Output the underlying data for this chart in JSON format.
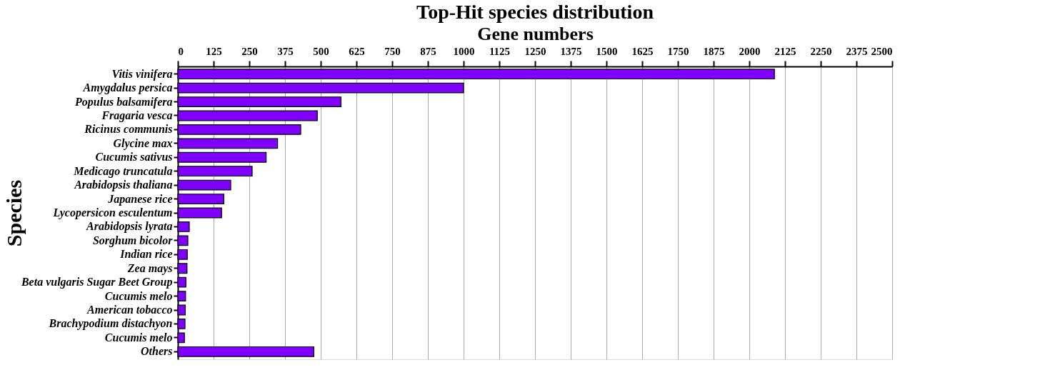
{
  "chart_data": {
    "type": "bar",
    "orientation": "horizontal",
    "title": "Top-Hit species distribution",
    "xlabel": "Gene numbers",
    "ylabel": "Species",
    "categories": [
      "Vitis vinifera",
      "Amygdalus persica",
      "Populus balsamifera",
      "Fragaria vesca",
      "Ricinus communis",
      "Glycine max",
      "Cucumis sativus",
      "Medicago truncatula",
      "Arabidopsis thaliana",
      "Japanese rice",
      "Lycopersicon esculentum",
      "Arabidopsis lyrata",
      "Sorghum bicolor",
      "Indian rice",
      "Zea mays",
      "Beta vulgaris Sugar Beet Group",
      "Cucumis melo",
      "American tobacco",
      "Brachypodium distachyon",
      "Cucumis melo",
      "Others"
    ],
    "values": [
      2088,
      1000,
      571,
      488,
      430,
      349,
      309,
      260,
      185,
      161,
      153,
      40,
      35,
      33,
      32,
      28,
      27,
      26,
      25,
      23,
      476
    ],
    "color": "#8000ff",
    "xlim": [
      0,
      2500
    ],
    "xticks": [
      0,
      125,
      250,
      375,
      500,
      625,
      750,
      875,
      1000,
      1125,
      1250,
      1375,
      1500,
      1625,
      1750,
      1875,
      2000,
      2125,
      2250,
      2375,
      2500
    ],
    "grid": "x"
  }
}
